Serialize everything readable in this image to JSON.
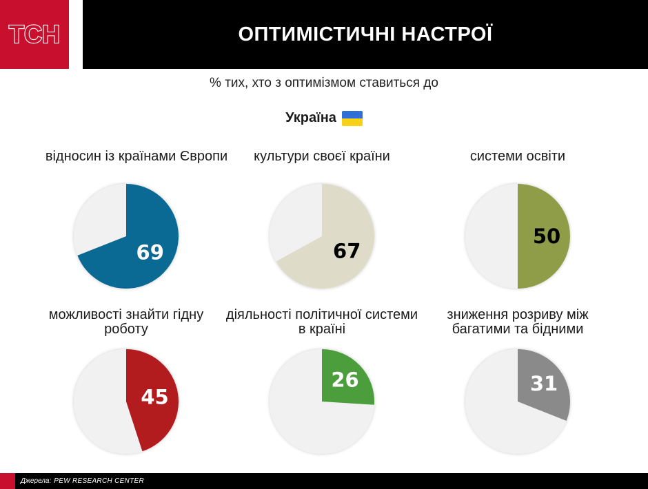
{
  "header": {
    "logo_text": "ТСН",
    "title": "ОПТИМІСТИЧНІ НАСТРОЇ",
    "subtitle": "% тих, хто з оптимізмом ставиться до",
    "country": "Україна",
    "flag_icon": "ukraine-flag-icon"
  },
  "chart_data": [
    {
      "type": "pie",
      "title": "відносин із країнами Європи",
      "value": 69,
      "label": "69",
      "color": "#0a6a94",
      "label_color": "#ffffff",
      "remainder_color": "#f1f1f1"
    },
    {
      "type": "pie",
      "title": "культури своєї країни",
      "value": 67,
      "label": "67",
      "color": "#dedbc9",
      "label_color": "#000000",
      "remainder_color": "#f1f1f1"
    },
    {
      "type": "pie",
      "title": "системи освіти",
      "value": 50,
      "label": "50",
      "color": "#8f9c48",
      "label_color": "#000000",
      "remainder_color": "#f1f1f1"
    },
    {
      "type": "pie",
      "title": "можливості знайти гідну роботу",
      "value": 45,
      "label": "45",
      "color": "#b31c1f",
      "label_color": "#ffffff",
      "remainder_color": "#f1f1f1"
    },
    {
      "type": "pie",
      "title": "діяльності політичної системи в країні",
      "value": 26,
      "label": "26",
      "color": "#4c9e3c",
      "label_color": "#ffffff",
      "remainder_color": "#f1f1f1"
    },
    {
      "type": "pie",
      "title": "зниження розриву між багатими та бідними",
      "value": 31,
      "label": "31",
      "color": "#8a8a8a",
      "label_color": "#ffffff",
      "remainder_color": "#f1f1f1"
    }
  ],
  "footer": {
    "source_label": "Джерела:",
    "source_name": "PEW RESEARCH CENTER"
  }
}
